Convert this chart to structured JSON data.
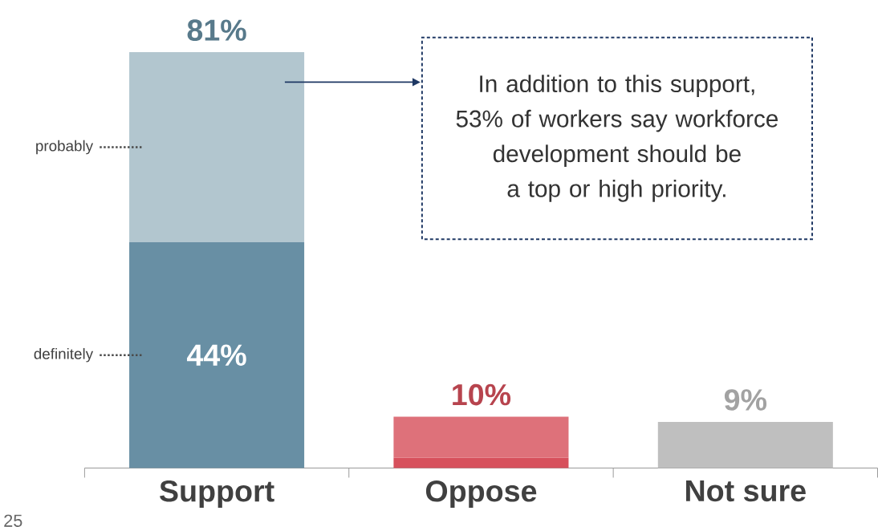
{
  "chart_data": {
    "type": "bar",
    "stacked": true,
    "categories": [
      "Support",
      "Oppose",
      "Not sure"
    ],
    "series": [
      {
        "name": "definitely",
        "colors": [
          "#688fa4",
          "#d7505c",
          "#bfbfbf"
        ],
        "values": [
          44,
          2,
          9
        ],
        "value_labels": [
          "44%",
          null,
          null
        ]
      },
      {
        "name": "probably",
        "colors": [
          "#b2c6cf",
          "#de717a",
          null
        ],
        "values": [
          37,
          8,
          null
        ]
      }
    ],
    "totals": [
      "81%",
      "10%",
      "9%"
    ],
    "annotations": [
      "In addition to this support, 53% of workers say workforce development should be a top or high priority.",
      "25"
    ]
  }
}
